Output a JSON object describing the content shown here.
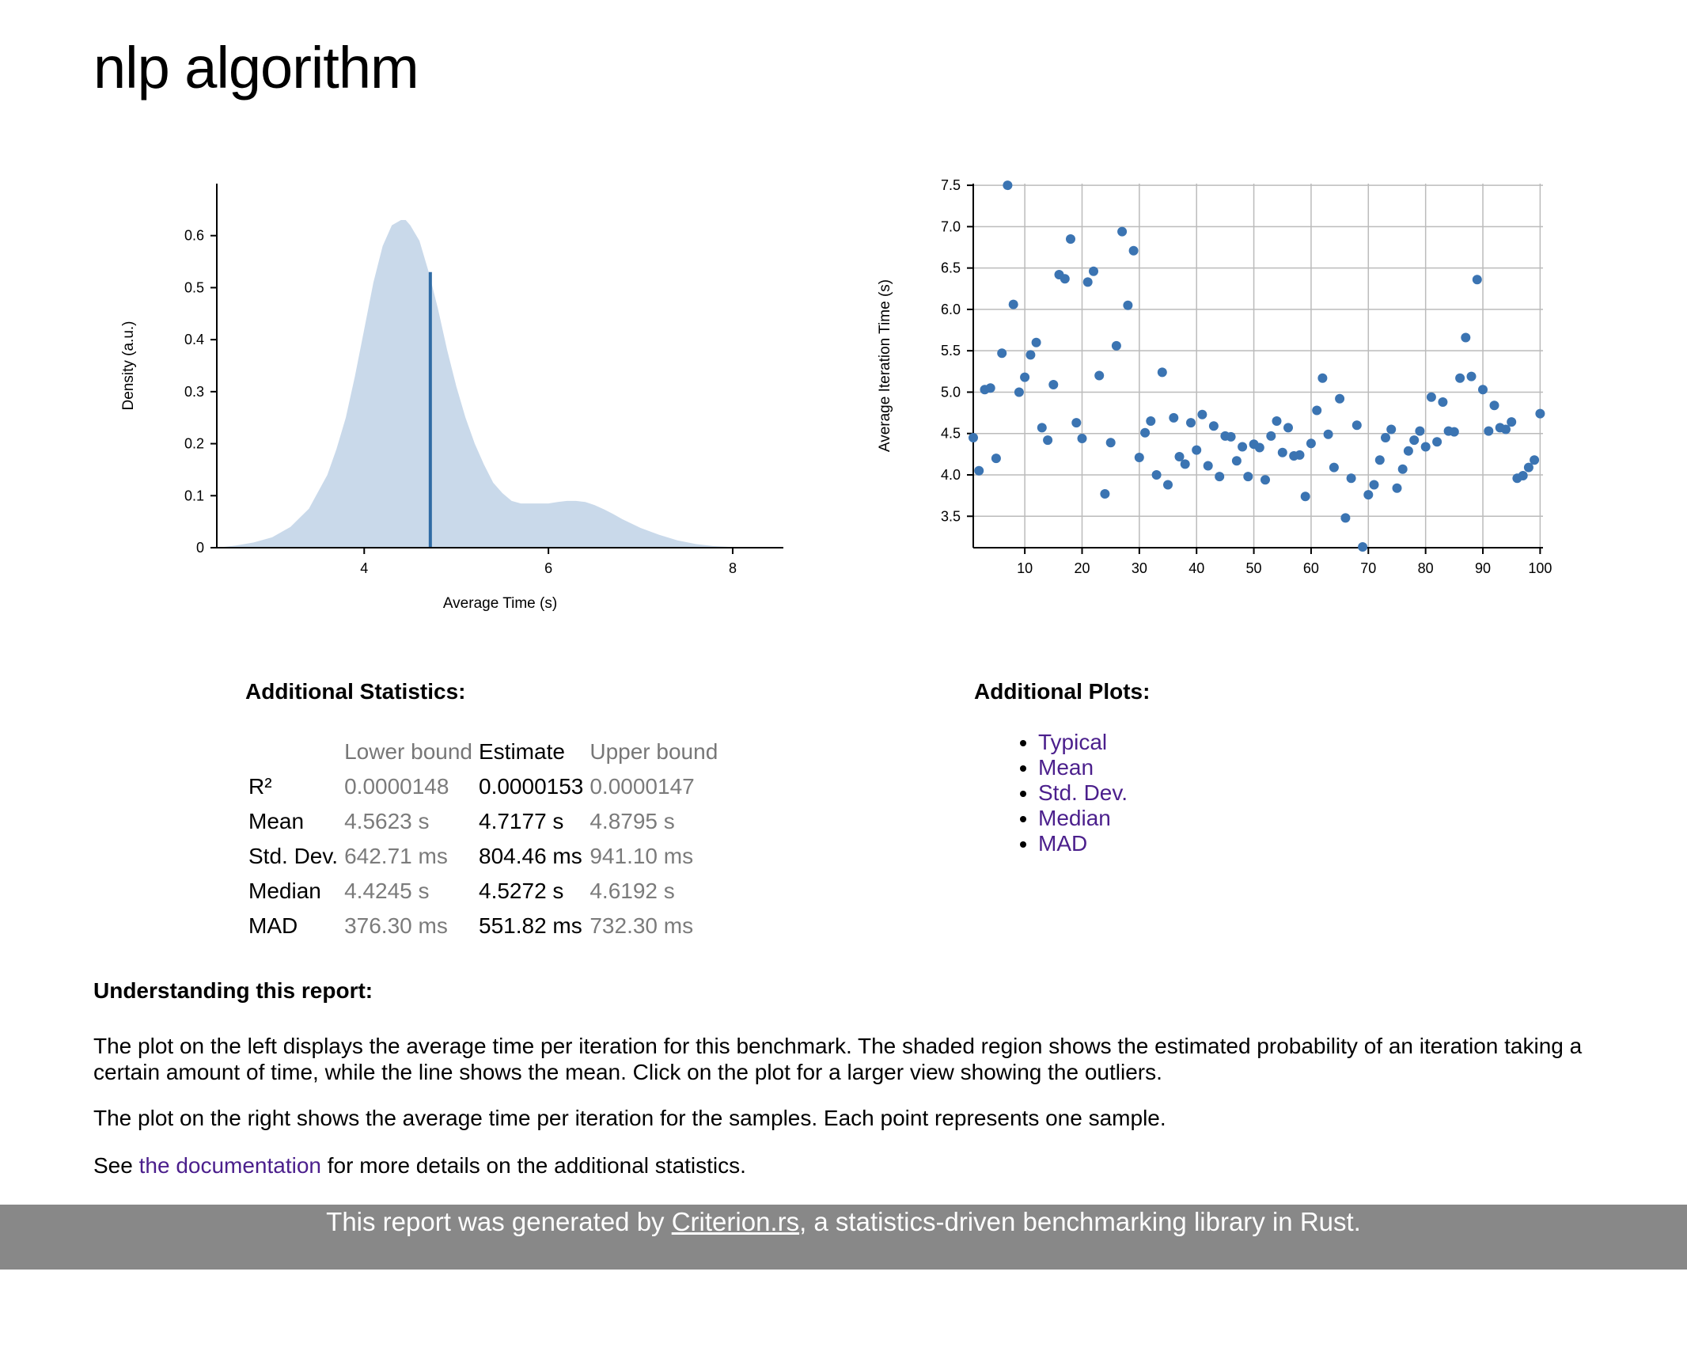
{
  "title": "nlp algorithm",
  "colors": {
    "density_fill": "#c9d9ea",
    "mean_line": "#2f6ba5",
    "point": "#3b74b2",
    "link": "#4b1f8c",
    "footer_bg": "#888888",
    "grid": "#bbbbbb"
  },
  "chart_data": [
    {
      "type": "area",
      "name": "density",
      "xlabel": "Average Time (s)",
      "ylabel": "Density (a.u.)",
      "xlim": [
        2.4,
        8.55
      ],
      "ylim": [
        0,
        0.7
      ],
      "xticks": [
        4,
        6,
        8
      ],
      "yticks": [
        0,
        0.1,
        0.2,
        0.3,
        0.4,
        0.5,
        0.6
      ],
      "grid": false,
      "mean": {
        "x": 4.7177,
        "y": 0.53
      },
      "x": [
        2.4,
        2.6,
        2.8,
        3.0,
        3.2,
        3.4,
        3.6,
        3.7,
        3.8,
        3.9,
        4.0,
        4.1,
        4.2,
        4.3,
        4.4,
        4.45,
        4.5,
        4.6,
        4.7,
        4.8,
        4.9,
        5.0,
        5.1,
        5.2,
        5.3,
        5.4,
        5.5,
        5.6,
        5.7,
        5.8,
        5.9,
        6.0,
        6.1,
        6.2,
        6.3,
        6.4,
        6.5,
        6.6,
        6.7,
        6.8,
        7.0,
        7.2,
        7.4,
        7.6,
        7.8,
        8.0,
        8.1
      ],
      "y": [
        0.0,
        0.004,
        0.01,
        0.02,
        0.04,
        0.075,
        0.14,
        0.19,
        0.25,
        0.33,
        0.42,
        0.51,
        0.58,
        0.62,
        0.63,
        0.63,
        0.62,
        0.59,
        0.53,
        0.46,
        0.38,
        0.31,
        0.25,
        0.2,
        0.16,
        0.125,
        0.105,
        0.09,
        0.085,
        0.085,
        0.085,
        0.085,
        0.088,
        0.09,
        0.09,
        0.088,
        0.082,
        0.074,
        0.065,
        0.055,
        0.038,
        0.025,
        0.014,
        0.007,
        0.003,
        0.001,
        0.0
      ]
    },
    {
      "type": "scatter",
      "name": "iterations",
      "xlabel": "",
      "ylabel": "Average Iteration Time (s)",
      "xlim": [
        1,
        100.5
      ],
      "ylim": [
        3.12,
        7.52
      ],
      "xticks": [
        10,
        20,
        30,
        40,
        50,
        60,
        70,
        80,
        90,
        100
      ],
      "yticks": [
        3.5,
        4.0,
        4.5,
        5.0,
        5.5,
        6.0,
        6.5,
        7.0,
        7.5
      ],
      "grid": true,
      "x": [
        1,
        2,
        3,
        4,
        5,
        6,
        7,
        8,
        9,
        10,
        11,
        12,
        13,
        14,
        15,
        16,
        17,
        18,
        19,
        20,
        21,
        22,
        23,
        24,
        25,
        26,
        27,
        28,
        29,
        30,
        31,
        32,
        33,
        34,
        35,
        36,
        37,
        38,
        39,
        40,
        41,
        42,
        43,
        44,
        45,
        46,
        47,
        48,
        49,
        50,
        51,
        52,
        53,
        54,
        55,
        56,
        57,
        58,
        59,
        60,
        61,
        62,
        63,
        64,
        65,
        66,
        67,
        68,
        69,
        70,
        71,
        72,
        73,
        74,
        75,
        76,
        77,
        78,
        79,
        80,
        81,
        82,
        83,
        84,
        85,
        86,
        87,
        88,
        89,
        90,
        91,
        92,
        93,
        94,
        95,
        96,
        97,
        98,
        99,
        100
      ],
      "y": [
        4.45,
        4.05,
        5.03,
        5.05,
        4.2,
        5.47,
        7.5,
        6.06,
        5.0,
        5.18,
        5.45,
        5.6,
        4.57,
        4.42,
        5.09,
        6.42,
        6.37,
        6.85,
        4.63,
        4.44,
        6.33,
        6.46,
        5.2,
        3.77,
        4.39,
        5.56,
        6.94,
        6.05,
        6.71,
        4.21,
        4.51,
        4.65,
        4.0,
        5.24,
        3.88,
        4.69,
        4.22,
        4.13,
        4.63,
        4.3,
        4.73,
        4.11,
        4.59,
        3.98,
        4.47,
        4.46,
        4.17,
        4.34,
        3.98,
        4.37,
        4.33,
        3.94,
        4.47,
        4.65,
        4.27,
        4.57,
        4.23,
        4.24,
        3.74,
        4.38,
        4.78,
        5.17,
        4.49,
        4.09,
        4.92,
        3.48,
        3.96,
        4.6,
        3.13,
        3.76,
        3.88,
        4.18,
        4.45,
        4.55,
        3.84,
        4.07,
        4.29,
        4.42,
        4.53,
        4.34,
        4.94,
        4.4,
        4.88,
        4.53,
        4.52,
        5.17,
        5.66,
        5.19,
        6.36,
        5.03,
        4.53,
        4.84,
        4.57,
        4.55,
        4.64,
        3.96,
        3.99,
        4.09,
        4.18,
        4.74
      ]
    }
  ],
  "stats": {
    "heading": "Additional Statistics:",
    "headers": [
      "",
      "Lower bound",
      "Estimate",
      "Upper bound"
    ],
    "rows": [
      {
        "label": "R²",
        "lower": "0.0000148",
        "estimate": "0.0000153",
        "upper": "0.0000147"
      },
      {
        "label": "Mean",
        "lower": "4.5623 s",
        "estimate": "4.7177 s",
        "upper": "4.8795 s"
      },
      {
        "label": "Std. Dev.",
        "lower": "642.71 ms",
        "estimate": "804.46 ms",
        "upper": "941.10 ms"
      },
      {
        "label": "Median",
        "lower": "4.4245 s",
        "estimate": "4.5272 s",
        "upper": "4.6192 s"
      },
      {
        "label": "MAD",
        "lower": "376.30 ms",
        "estimate": "551.82 ms",
        "upper": "732.30 ms"
      }
    ]
  },
  "plots": {
    "heading": "Additional Plots:",
    "links": [
      "Typical",
      "Mean",
      "Std. Dev.",
      "Median",
      "MAD"
    ]
  },
  "understanding": {
    "heading": "Understanding this report:",
    "para1": "The plot on the left displays the average time per iteration for this benchmark. The shaded region shows the estimated probability of an iteration taking a certain amount of time, while the line shows the mean. Click on the plot for a larger view showing the outliers.",
    "para2": "The plot on the right shows the average time per iteration for the samples. Each point represents one sample.",
    "para3_before": "See ",
    "para3_link": "the documentation",
    "para3_after": " for more details on the additional statistics."
  },
  "footer": {
    "before": "This report was generated by ",
    "link": "Criterion.rs",
    "after": ", a statistics-driven benchmarking library in Rust."
  }
}
